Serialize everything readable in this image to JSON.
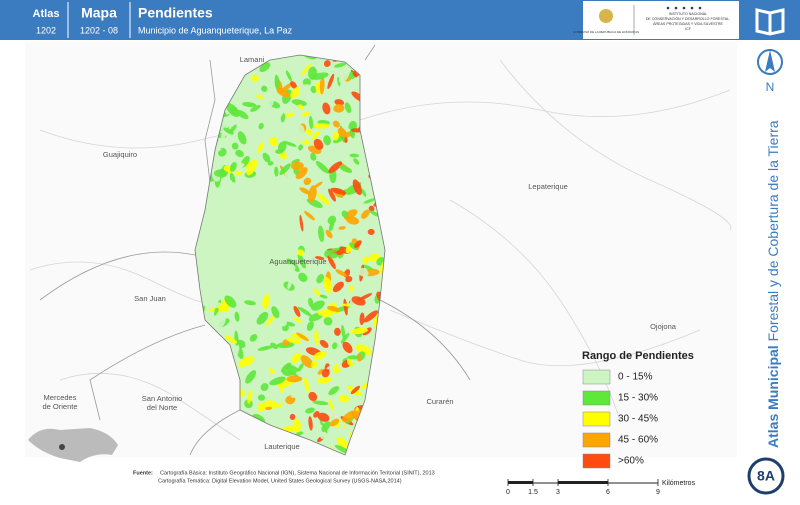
{
  "header": {
    "atlas_label": "Atlas",
    "atlas_number": "1202",
    "map_label": "Mapa",
    "map_number": "1202 - 08",
    "title": "Pendientes",
    "subtitle": "Municipio de Aguanqueterique, La Paz",
    "logo_left": "GOBIERNO DE LA REPÚBLICA DE HONDURAS",
    "logo_right": [
      "INSTITUTO NACIONAL",
      "DE CONSERVACIÓN Y DESARROLLO FORESTAL,",
      "ÁREAS PROTEGIDAS Y VIDA SILVESTRE",
      "ICF"
    ]
  },
  "places": [
    {
      "lines": [
        "Lamani"
      ]
    },
    {
      "lines": [
        "Guajiquiro"
      ]
    },
    {
      "lines": [
        "Lepaterique"
      ]
    },
    {
      "lines": [
        "Aguanqueterique"
      ]
    },
    {
      "lines": [
        "San Juan"
      ]
    },
    {
      "lines": [
        "Ojojona"
      ]
    },
    {
      "lines": [
        "Mercedes",
        "de Oriente"
      ]
    },
    {
      "lines": [
        "San Antonio",
        "del Norte"
      ]
    },
    {
      "lines": [
        "Curarén"
      ]
    },
    {
      "lines": [
        "Lauterique"
      ]
    }
  ],
  "legend": {
    "title": "Rango de Pendientes",
    "items": [
      {
        "label": "0 - 15%",
        "color": "#ccf5c2"
      },
      {
        "label": "15 - 30%",
        "color": "#5ee83a"
      },
      {
        "label": "30 - 45%",
        "color": "#ffff00"
      },
      {
        "label": "45 - 60%",
        "color": "#ffa500"
      },
      {
        "label": ">60%",
        "color": "#ff4a10"
      }
    ]
  },
  "source": {
    "label": "Fuente:",
    "lines": [
      "Cartografía Básica: Instituto Geográfico Nacional (IGN), Sistema Nacional de Información Teritorial (SINIT), 2013",
      "Cartografía Temática: Digital Elevation Model, United States Geological Survey (USGS-NASA,2014)"
    ]
  },
  "scale": {
    "ticks": [
      0,
      1.5,
      3,
      6,
      9
    ],
    "unit": "Kilómetros"
  },
  "sidebar": {
    "north": "N",
    "title_bold": "Atlas Municipal",
    "title_rest": " Forestal y de Cobertura de la Tierra",
    "badge": "8A"
  }
}
